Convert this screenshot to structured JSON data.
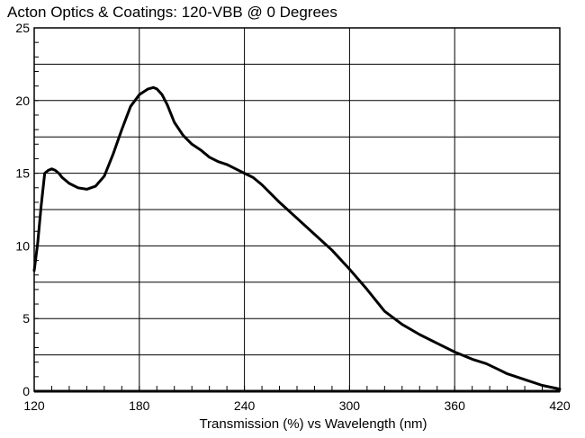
{
  "chart_data": {
    "type": "line",
    "title": "Acton Optics & Coatings: 120-VBB @ 0 Degrees",
    "xlabel": "Transmission (%) vs Wavelength (nm)",
    "ylabel": "",
    "xlim": [
      120,
      420
    ],
    "ylim": [
      0,
      25
    ],
    "x_ticks": [
      120,
      180,
      240,
      300,
      360,
      420
    ],
    "y_ticks": [
      0,
      5,
      10,
      15,
      20,
      25
    ],
    "grid": true,
    "minor_x_step": 10,
    "line_color": "#000000",
    "series": [
      {
        "x": [
          120,
          122,
          124,
          126,
          128,
          130,
          132,
          134,
          136,
          140,
          145,
          150,
          155,
          160,
          165,
          170,
          175,
          180,
          185,
          188,
          190,
          193,
          196,
          200,
          205,
          210,
          215,
          220,
          225,
          230,
          235,
          240,
          245,
          250,
          255,
          260,
          270,
          280,
          290,
          300,
          310,
          320,
          330,
          340,
          350,
          360,
          370,
          378,
          385,
          390,
          400,
          410,
          420
        ],
        "y": [
          8.3,
          10.2,
          12.8,
          15.0,
          15.2,
          15.3,
          15.2,
          15.0,
          14.7,
          14.3,
          14.0,
          13.9,
          14.1,
          14.8,
          16.3,
          18.0,
          19.6,
          20.4,
          20.8,
          20.9,
          20.8,
          20.4,
          19.7,
          18.5,
          17.6,
          17.0,
          16.6,
          16.1,
          15.8,
          15.6,
          15.3,
          15.0,
          14.7,
          14.2,
          13.6,
          13.0,
          11.9,
          10.8,
          9.7,
          8.4,
          7.0,
          5.5,
          4.6,
          3.9,
          3.3,
          2.7,
          2.2,
          1.9,
          1.5,
          1.2,
          0.8,
          0.4,
          0.15
        ]
      }
    ]
  }
}
